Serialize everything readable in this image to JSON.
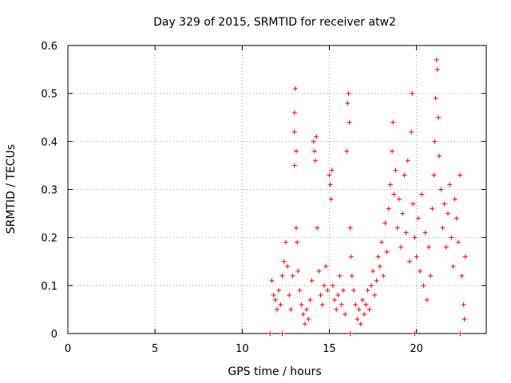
{
  "chart_data": {
    "type": "scatter",
    "title": "Day 329 of 2015, SRMTID for receiver atw2",
    "xlabel": "GPS time / hours",
    "ylabel": "SRMTID / TECUs",
    "xlim": [
      0,
      24
    ],
    "ylim": [
      0,
      0.6
    ],
    "xticks": [
      0,
      5,
      10,
      15,
      20
    ],
    "yticks": [
      0,
      0.1,
      0.2,
      0.3,
      0.4,
      0.5,
      0.6
    ],
    "xtick_labels": [
      "0",
      "5",
      "10",
      "15",
      "20"
    ],
    "ytick_labels": [
      "0",
      "0.1",
      "0.2",
      "0.3",
      "0.4",
      "0.5",
      "0.6"
    ],
    "grid": true,
    "marker": "+",
    "color": "#ff0000",
    "series": [
      {
        "name": "SRMTID",
        "points": [
          [
            11.6,
            0.0
          ],
          [
            12.3,
            0.0
          ],
          [
            16.2,
            0.0
          ],
          [
            19.9,
            0.0
          ],
          [
            22.5,
            0.0
          ],
          [
            11.7,
            0.11
          ],
          [
            11.8,
            0.08
          ],
          [
            11.9,
            0.07
          ],
          [
            12.0,
            0.05
          ],
          [
            12.1,
            0.09
          ],
          [
            12.2,
            0.06
          ],
          [
            12.3,
            0.12
          ],
          [
            12.4,
            0.15
          ],
          [
            12.5,
            0.19
          ],
          [
            12.6,
            0.14
          ],
          [
            12.7,
            0.08
          ],
          [
            12.8,
            0.05
          ],
          [
            12.9,
            0.12
          ],
          [
            13.0,
            0.46
          ],
          [
            13.0,
            0.42
          ],
          [
            13.05,
            0.51
          ],
          [
            13.1,
            0.38
          ],
          [
            13.0,
            0.35
          ],
          [
            13.1,
            0.22
          ],
          [
            13.15,
            0.19
          ],
          [
            13.2,
            0.13
          ],
          [
            13.3,
            0.09
          ],
          [
            13.4,
            0.06
          ],
          [
            13.5,
            0.04
          ],
          [
            13.6,
            0.02
          ],
          [
            13.7,
            0.05
          ],
          [
            13.8,
            0.03
          ],
          [
            13.9,
            0.07
          ],
          [
            14.0,
            0.11
          ],
          [
            14.1,
            0.4
          ],
          [
            14.15,
            0.38
          ],
          [
            14.2,
            0.36
          ],
          [
            14.25,
            0.41
          ],
          [
            14.3,
            0.22
          ],
          [
            14.4,
            0.13
          ],
          [
            14.5,
            0.08
          ],
          [
            14.6,
            0.06
          ],
          [
            14.7,
            0.1
          ],
          [
            14.8,
            0.14
          ],
          [
            14.9,
            0.09
          ],
          [
            15.0,
            0.33
          ],
          [
            15.05,
            0.31
          ],
          [
            15.1,
            0.28
          ],
          [
            15.15,
            0.34
          ],
          [
            15.2,
            0.1
          ],
          [
            15.3,
            0.07
          ],
          [
            15.4,
            0.05
          ],
          [
            15.5,
            0.08
          ],
          [
            15.6,
            0.12
          ],
          [
            15.7,
            0.06
          ],
          [
            15.8,
            0.09
          ],
          [
            15.9,
            0.04
          ],
          [
            16.0,
            0.38
          ],
          [
            16.05,
            0.48
          ],
          [
            16.1,
            0.5
          ],
          [
            16.15,
            0.44
          ],
          [
            16.2,
            0.22
          ],
          [
            16.25,
            0.16
          ],
          [
            16.3,
            0.12
          ],
          [
            16.4,
            0.09
          ],
          [
            16.5,
            0.06
          ],
          [
            16.6,
            0.03
          ],
          [
            16.7,
            0.05
          ],
          [
            16.8,
            0.02
          ],
          [
            16.9,
            0.07
          ],
          [
            17.0,
            0.04
          ],
          [
            17.1,
            0.06
          ],
          [
            17.2,
            0.09
          ],
          [
            17.3,
            0.05
          ],
          [
            17.4,
            0.1
          ],
          [
            17.5,
            0.13
          ],
          [
            17.6,
            0.08
          ],
          [
            17.7,
            0.11
          ],
          [
            17.8,
            0.16
          ],
          [
            17.9,
            0.14
          ],
          [
            18.0,
            0.19
          ],
          [
            18.1,
            0.12
          ],
          [
            18.2,
            0.23
          ],
          [
            18.3,
            0.17
          ],
          [
            18.4,
            0.26
          ],
          [
            18.5,
            0.31
          ],
          [
            18.6,
            0.38
          ],
          [
            18.65,
            0.44
          ],
          [
            18.7,
            0.29
          ],
          [
            18.8,
            0.34
          ],
          [
            18.9,
            0.22
          ],
          [
            19.0,
            0.28
          ],
          [
            19.1,
            0.18
          ],
          [
            19.2,
            0.25
          ],
          [
            19.3,
            0.33
          ],
          [
            19.4,
            0.21
          ],
          [
            19.5,
            0.36
          ],
          [
            19.6,
            0.15
          ],
          [
            19.7,
            0.42
          ],
          [
            19.75,
            0.5
          ],
          [
            19.8,
            0.27
          ],
          [
            19.9,
            0.2
          ],
          [
            20.0,
            0.16
          ],
          [
            20.1,
            0.24
          ],
          [
            20.2,
            0.13
          ],
          [
            20.3,
            0.29
          ],
          [
            20.4,
            0.1
          ],
          [
            20.5,
            0.21
          ],
          [
            20.6,
            0.07
          ],
          [
            20.7,
            0.18
          ],
          [
            20.8,
            0.12
          ],
          [
            20.9,
            0.26
          ],
          [
            21.0,
            0.33
          ],
          [
            21.05,
            0.4
          ],
          [
            21.1,
            0.49
          ],
          [
            21.15,
            0.57
          ],
          [
            21.2,
            0.55
          ],
          [
            21.25,
            0.45
          ],
          [
            21.3,
            0.37
          ],
          [
            21.4,
            0.3
          ],
          [
            21.5,
            0.22
          ],
          [
            21.6,
            0.27
          ],
          [
            21.7,
            0.18
          ],
          [
            21.8,
            0.25
          ],
          [
            21.9,
            0.31
          ],
          [
            22.0,
            0.2
          ],
          [
            22.1,
            0.14
          ],
          [
            22.2,
            0.28
          ],
          [
            22.3,
            0.24
          ],
          [
            22.4,
            0.19
          ],
          [
            22.5,
            0.33
          ],
          [
            22.6,
            0.12
          ],
          [
            22.7,
            0.06
          ],
          [
            22.75,
            0.03
          ],
          [
            22.8,
            0.16
          ]
        ]
      }
    ]
  }
}
